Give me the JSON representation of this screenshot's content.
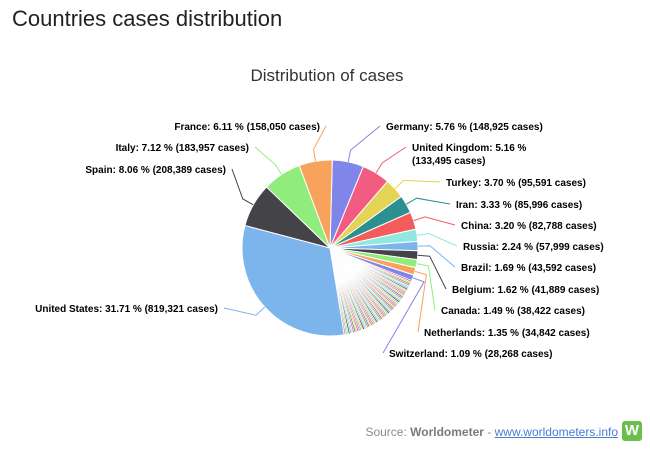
{
  "page": {
    "title": "Countries cases distribution"
  },
  "source": {
    "prefix": "Source: ",
    "name": "Worldometer",
    "separator": " - ",
    "link": "www.worldometers.info",
    "logo_letter": "W",
    "logo_color": "#6abf4b"
  },
  "chart_data": {
    "type": "pie",
    "title": "Distribution of cases",
    "slices": [
      {
        "name": "United States",
        "pct": "31.71",
        "cases": "819,321",
        "value": 31.71,
        "color": "#7cb5ec",
        "label_lines": [
          "United States: 31.71 % (819,321 cases)"
        ]
      },
      {
        "name": "Spain",
        "pct": "8.06",
        "cases": "208,389",
        "value": 8.06,
        "color": "#434348",
        "label_lines": [
          "Spain: 8.06 % (208,389 cases)"
        ]
      },
      {
        "name": "Italy",
        "pct": "7.12",
        "cases": "183,957",
        "value": 7.12,
        "color": "#90ed7d",
        "label_lines": [
          "Italy: 7.12 % (183,957 cases)"
        ]
      },
      {
        "name": "France",
        "pct": "6.11",
        "cases": "158,050",
        "value": 6.11,
        "color": "#f7a35c",
        "label_lines": [
          "France: 6.11 % (158,050 cases)"
        ]
      },
      {
        "name": "Germany",
        "pct": "5.76",
        "cases": "148,925",
        "value": 5.76,
        "color": "#8085e9",
        "label_lines": [
          "Germany: 5.76 % (148,925 cases)"
        ]
      },
      {
        "name": "United Kingdom",
        "pct": "5.16",
        "cases": "133,495",
        "value": 5.16,
        "color": "#f15c80",
        "label_lines": [
          "United Kingdom: 5.16 %",
          "(133,495 cases)"
        ]
      },
      {
        "name": "Turkey",
        "pct": "3.70",
        "cases": "95,591",
        "value": 3.7,
        "color": "#e4d354",
        "label_lines": [
          "Turkey: 3.70 % (95,591 cases)"
        ]
      },
      {
        "name": "Iran",
        "pct": "3.33",
        "cases": "85,996",
        "value": 3.33,
        "color": "#2b908f",
        "label_lines": [
          "Iran: 3.33 % (85,996 cases)"
        ]
      },
      {
        "name": "China",
        "pct": "3.20",
        "cases": "82,788",
        "value": 3.2,
        "color": "#f45b5b",
        "label_lines": [
          "China: 3.20 % (82,788 cases)"
        ]
      },
      {
        "name": "Russia",
        "pct": "2.24",
        "cases": "57,999",
        "value": 2.24,
        "color": "#91e8e1",
        "label_lines": [
          "Russia: 2.24 % (57,999 cases)"
        ]
      },
      {
        "name": "Brazil",
        "pct": "1.69",
        "cases": "43,592",
        "value": 1.69,
        "color": "#7cb5ec",
        "label_lines": [
          "Brazil: 1.69 % (43,592 cases)"
        ]
      },
      {
        "name": "Belgium",
        "pct": "1.62",
        "cases": "41,889",
        "value": 1.62,
        "color": "#434348",
        "label_lines": [
          "Belgium: 1.62 % (41,889 cases)"
        ]
      },
      {
        "name": "Canada",
        "pct": "1.49",
        "cases": "38,422",
        "value": 1.49,
        "color": "#90ed7d",
        "label_lines": [
          "Canada: 1.49 % (38,422 cases)"
        ]
      },
      {
        "name": "Netherlands",
        "pct": "1.35",
        "cases": "34,842",
        "value": 1.35,
        "color": "#f7a35c",
        "label_lines": [
          "Netherlands: 1.35 % (34,842 cases)"
        ]
      },
      {
        "name": "Switzerland",
        "pct": "1.09",
        "cases": "28,268",
        "value": 1.09,
        "color": "#8085e9",
        "label_lines": [
          "Switzerland: 1.09 % (28,268 cases)"
        ]
      }
    ],
    "other_small_slices": {
      "total_pct": 16.37,
      "count": 60,
      "colors": [
        "#f15c80",
        "#e4d354",
        "#2b908f",
        "#f45b5b",
        "#91e8e1",
        "#7cb5ec",
        "#434348",
        "#90ed7d",
        "#f7a35c",
        "#8085e9"
      ]
    }
  }
}
